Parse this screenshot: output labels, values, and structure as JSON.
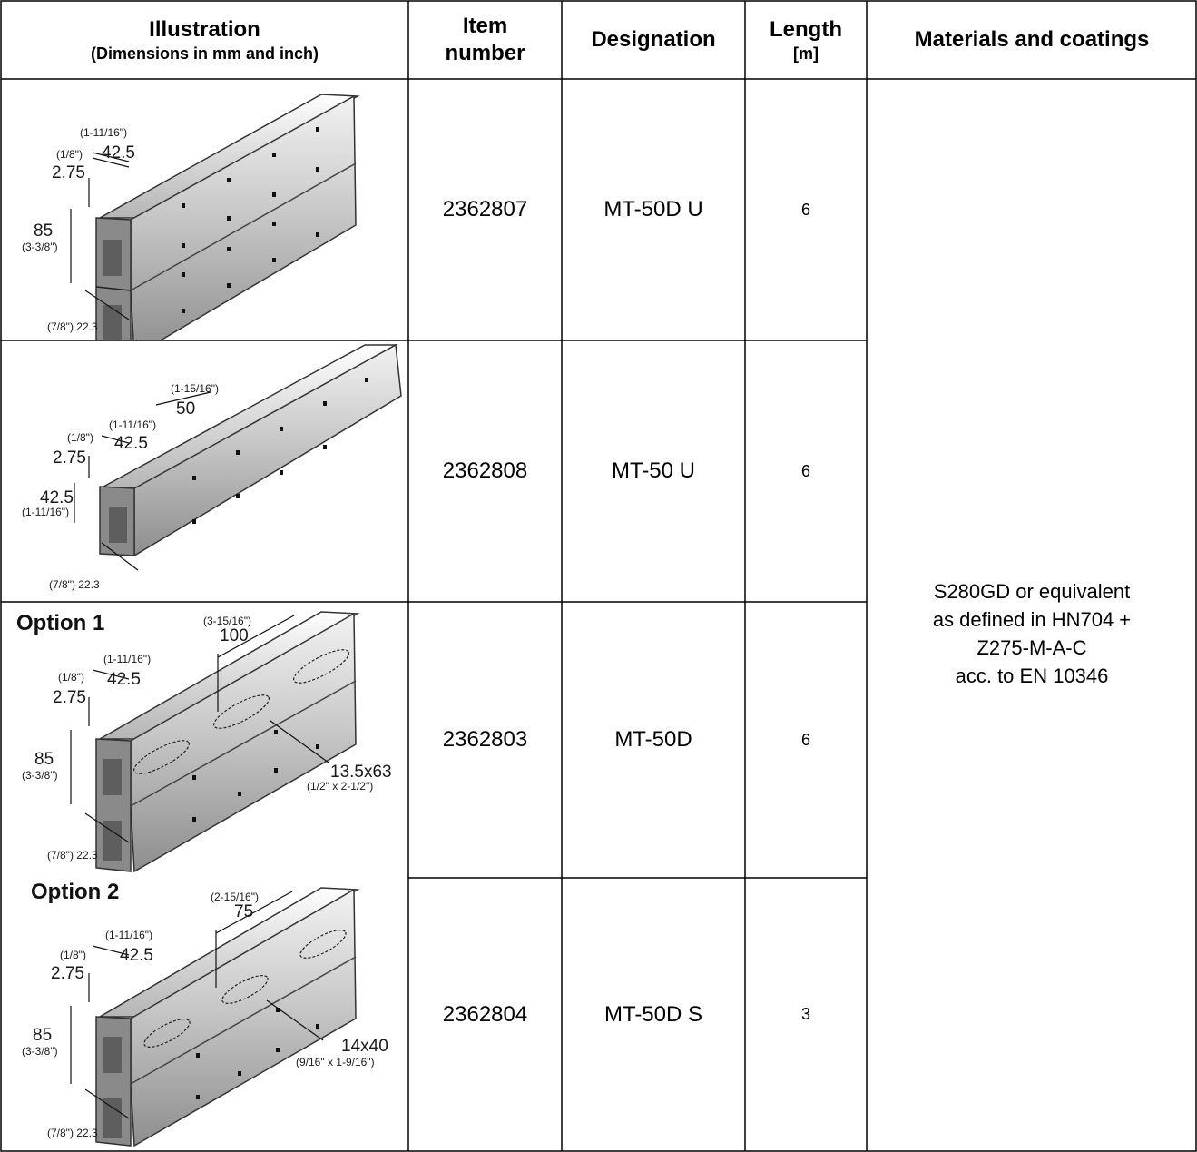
{
  "header": {
    "illustration": "Illustration",
    "illustration_sub": "(Dimensions in mm and inch)",
    "item_number": "Item number",
    "designation": "Designation",
    "length": "Length",
    "length_unit": "[m]",
    "materials": "Materials and coatings"
  },
  "rows": [
    {
      "item": "2362807",
      "designation": "MT-50D U",
      "length": "6"
    },
    {
      "item": "2362808",
      "designation": "MT-50 U",
      "length": "6"
    },
    {
      "item": "2362803",
      "designation": "MT-50D",
      "length": "6"
    },
    {
      "item": "2362804",
      "designation": "MT-50D S",
      "length": "3"
    }
  ],
  "materials": {
    "line1": "S280GD or equivalent",
    "line2": "as defined in HN704 +",
    "line3": "Z275-M-A-C",
    "line4": "acc. to EN 10346"
  },
  "illustrations": {
    "ill1": {
      "top_inch": "(1-11/16\")",
      "top_mm": "42.5",
      "lip_inch": "(1/8\")",
      "lip_mm": "2.75",
      "h_mm": "85",
      "h_inch": "(3-3/8\")",
      "w_label": "(7/8\") 22.3"
    },
    "ill2": {
      "hole_inch": "(1-15/16\")",
      "hole_mm": "50",
      "top_inch": "(1-11/16\")",
      "top_mm": "42.5",
      "lip_inch": "(1/8\")",
      "lip_mm": "2.75",
      "h_mm": "42.5",
      "h_inch": "(1-11/16\")",
      "w_label": "(7/8\") 22.3"
    },
    "opt1": {
      "title": "Option 1",
      "spacing_inch": "(3-15/16\")",
      "spacing_mm": "100",
      "top_inch": "(1-11/16\")",
      "top_mm": "42.5",
      "lip_inch": "(1/8\")",
      "lip_mm": "2.75",
      "h_mm": "85",
      "h_inch": "(3-3/8\")",
      "slot_mm": "13.5x63",
      "slot_inch": "(1/2\" x 2-1/2\")",
      "w_label": "(7/8\") 22.3"
    },
    "opt2": {
      "title": "Option 2",
      "spacing_inch": "(2-15/16\")",
      "spacing_mm": "75",
      "top_inch": "(1-11/16\")",
      "top_mm": "42.5",
      "lip_inch": "(1/8\")",
      "lip_mm": "2.75",
      "h_mm": "85",
      "h_inch": "(3-3/8\")",
      "slot_mm": "14x40",
      "slot_inch": "(9/16\" x 1-9/16\")",
      "w_label": "(7/8\") 22.3"
    }
  }
}
